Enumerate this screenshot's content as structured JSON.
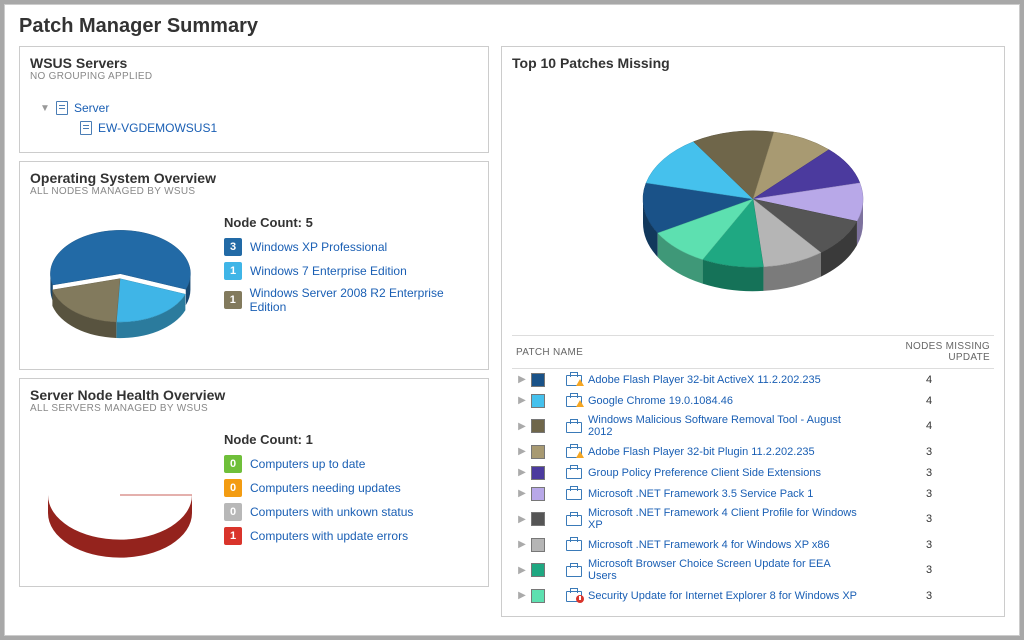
{
  "page_title": "Patch Manager Summary",
  "wsus": {
    "title": "WSUS Servers",
    "subtitle": "NO GROUPING APPLIED",
    "root_label": "Server",
    "children": [
      "EW-VGDEMOWSUS1"
    ]
  },
  "os_overview": {
    "title": "Operating System Overview",
    "subtitle": "ALL NODES MANAGED BY WSUS",
    "node_count_label": "Node Count: 5",
    "slices": [
      {
        "value": 3,
        "color": "#226aa6",
        "label": "Windows XP Professional"
      },
      {
        "value": 1,
        "color": "#3fb5e7",
        "label": "Windows 7 Enterprise Edition"
      },
      {
        "value": 1,
        "color": "#827a5d",
        "label": "Windows Server 2008 R2 Enterprise Edition"
      }
    ],
    "pie_radius": 70,
    "pie_thickness": 16
  },
  "health": {
    "title": "Server Node Health Overview",
    "subtitle": "ALL SERVERS MANAGED BY WSUS",
    "node_count_label": "Node Count: 1",
    "slice": {
      "value": 1,
      "color": "#d9342b"
    },
    "pie_radius": 72,
    "pie_thickness": 18,
    "legend": [
      {
        "count": 0,
        "badge_color": "#6fbf3a",
        "label": "Computers up to date"
      },
      {
        "count": 0,
        "badge_color": "#f39c12",
        "label": "Computers needing updates"
      },
      {
        "count": 0,
        "badge_color": "#b8b8b8",
        "label": "Computers with unkown status"
      },
      {
        "count": 1,
        "badge_color": "#d9342b",
        "label": "Computers with update errors"
      }
    ]
  },
  "top10": {
    "title": "Top 10 Patches Missing",
    "col_patch": "PATCH NAME",
    "col_nodes": "NODES MISSING UPDATE",
    "pie_radius": 110,
    "pie_thickness": 24,
    "rows": [
      {
        "color": "#1a5288",
        "label": "Adobe Flash Player 32-bit ActiveX 11.2.202.235",
        "nodes": 4,
        "warn": true
      },
      {
        "color": "#45c1ed",
        "label": "Google Chrome 19.0.1084.46",
        "nodes": 4,
        "warn": true
      },
      {
        "color": "#6f664a",
        "label": "Windows Malicious Software Removal Tool - August 2012",
        "nodes": 4
      },
      {
        "color": "#a89a72",
        "label": "Adobe Flash Player 32-bit Plugin 11.2.202.235",
        "nodes": 3,
        "warn": true
      },
      {
        "color": "#4b3a9e",
        "label": "Group Policy Preference Client Side Extensions",
        "nodes": 3
      },
      {
        "color": "#b8a8e8",
        "label": "Microsoft .NET Framework 3.5 Service Pack 1",
        "nodes": 3
      },
      {
        "color": "#555555",
        "label": "Microsoft .NET Framework 4 Client Profile for Windows XP",
        "nodes": 3
      },
      {
        "color": "#b5b5b5",
        "label": "Microsoft .NET Framework 4 for Windows XP x86",
        "nodes": 3
      },
      {
        "color": "#1fa882",
        "label": "Microsoft Browser Choice Screen Update for EEA Users",
        "nodes": 3
      },
      {
        "color": "#5de0b0",
        "label": "Security Update for Internet Explorer 8 for Windows XP",
        "nodes": 3,
        "err": true
      }
    ]
  }
}
